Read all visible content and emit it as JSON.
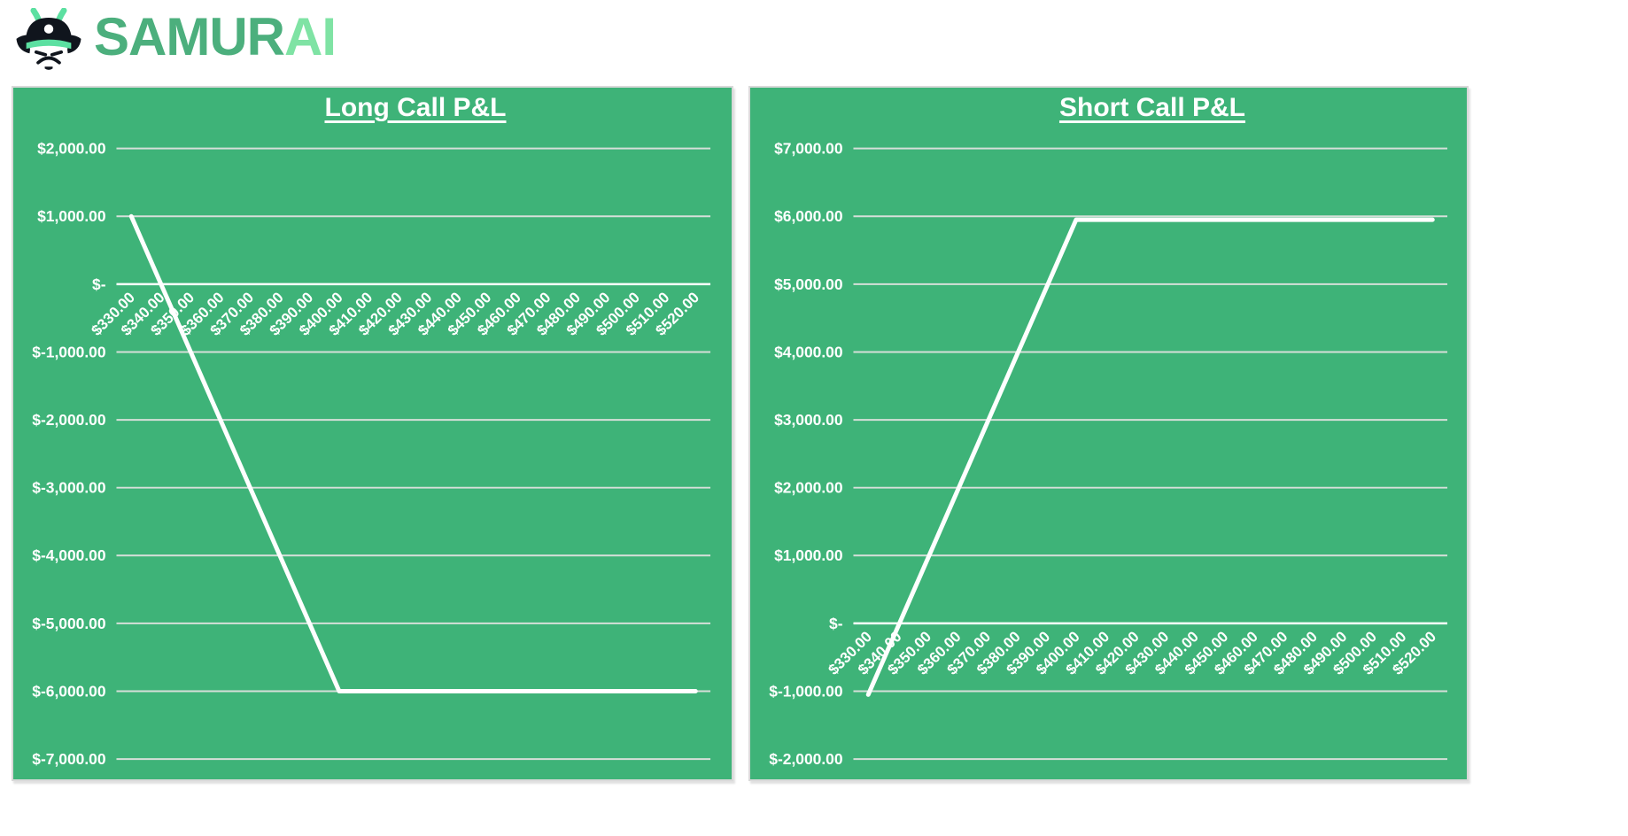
{
  "logo": {
    "brand_primary": "SAMUR",
    "brand_accent": "AI",
    "icon": "samurai-helmet-icon"
  },
  "colors": {
    "brand_primary_green": "#4CAF7D",
    "brand_accent_green": "#7FE3A4",
    "icon_horn_green": "#5CE0A1",
    "icon_black": "#10151d",
    "panel_green": "#3EB378",
    "gridline": "#D6DFD9",
    "axis_line": "#FFFFFF",
    "data_line": "#FFFFFF",
    "chart_text": "#FFFFFF"
  },
  "chart_data": [
    {
      "type": "line",
      "title": "Long Call P&L",
      "xlabel": "",
      "ylabel": "",
      "x": [
        330,
        340,
        350,
        360,
        370,
        380,
        390,
        400,
        410,
        420,
        430,
        440,
        450,
        460,
        470,
        480,
        490,
        500,
        510,
        520
      ],
      "x_tick_labels": [
        "$330.00",
        "$340.00",
        "$350.00",
        "$360.00",
        "$370.00",
        "$380.00",
        "$390.00",
        "$400.00",
        "$410.00",
        "$420.00",
        "$430.00",
        "$440.00",
        "$450.00",
        "$460.00",
        "$470.00",
        "$480.00",
        "$490.00",
        "$500.00",
        "$510.00",
        "$520.00"
      ],
      "x_tick_rotation_deg": 45,
      "ylim": [
        -7000,
        2000
      ],
      "y_tick_step": 1000,
      "y_tick_labels": [
        "$2,000.00",
        "$1,000.00",
        "$-",
        "$-1,000.00",
        "$-2,000.00",
        "$-3,000.00",
        "$-4,000.00",
        "$-5,000.00",
        "$-6,000.00",
        "$-7,000.00"
      ],
      "grid": true,
      "legend": false,
      "series": [
        {
          "name": "P&L",
          "values": [
            1000,
            0,
            -1000,
            -2000,
            -3000,
            -4000,
            -5000,
            -6000,
            -6000,
            -6000,
            -6000,
            -6000,
            -6000,
            -6000,
            -6000,
            -6000,
            -6000,
            -6000,
            -6000,
            -6000
          ]
        }
      ]
    },
    {
      "type": "line",
      "title": "Short Call P&L",
      "xlabel": "",
      "ylabel": "",
      "x": [
        330,
        340,
        350,
        360,
        370,
        380,
        390,
        400,
        410,
        420,
        430,
        440,
        450,
        460,
        470,
        480,
        490,
        500,
        510,
        520
      ],
      "x_tick_labels": [
        "$330.00",
        "$340.00",
        "$350.00",
        "$360.00",
        "$370.00",
        "$380.00",
        "$390.00",
        "$400.00",
        "$410.00",
        "$420.00",
        "$430.00",
        "$440.00",
        "$450.00",
        "$460.00",
        "$470.00",
        "$480.00",
        "$490.00",
        "$500.00",
        "$510.00",
        "$520.00"
      ],
      "x_tick_rotation_deg": 45,
      "ylim": [
        -2000,
        7000
      ],
      "y_tick_step": 1000,
      "y_tick_labels": [
        "$7,000.00",
        "$6,000.00",
        "$5,000.00",
        "$4,000.00",
        "$3,000.00",
        "$2,000.00",
        "$1,000.00",
        "$-",
        "$-1,000.00",
        "$-2,000.00"
      ],
      "grid": true,
      "legend": false,
      "series": [
        {
          "name": "P&L",
          "values": [
            -1050,
            -50,
            950,
            1950,
            2950,
            3950,
            4950,
            5950,
            5950,
            5950,
            5950,
            5950,
            5950,
            5950,
            5950,
            5950,
            5950,
            5950,
            5950,
            5950
          ]
        }
      ]
    }
  ]
}
